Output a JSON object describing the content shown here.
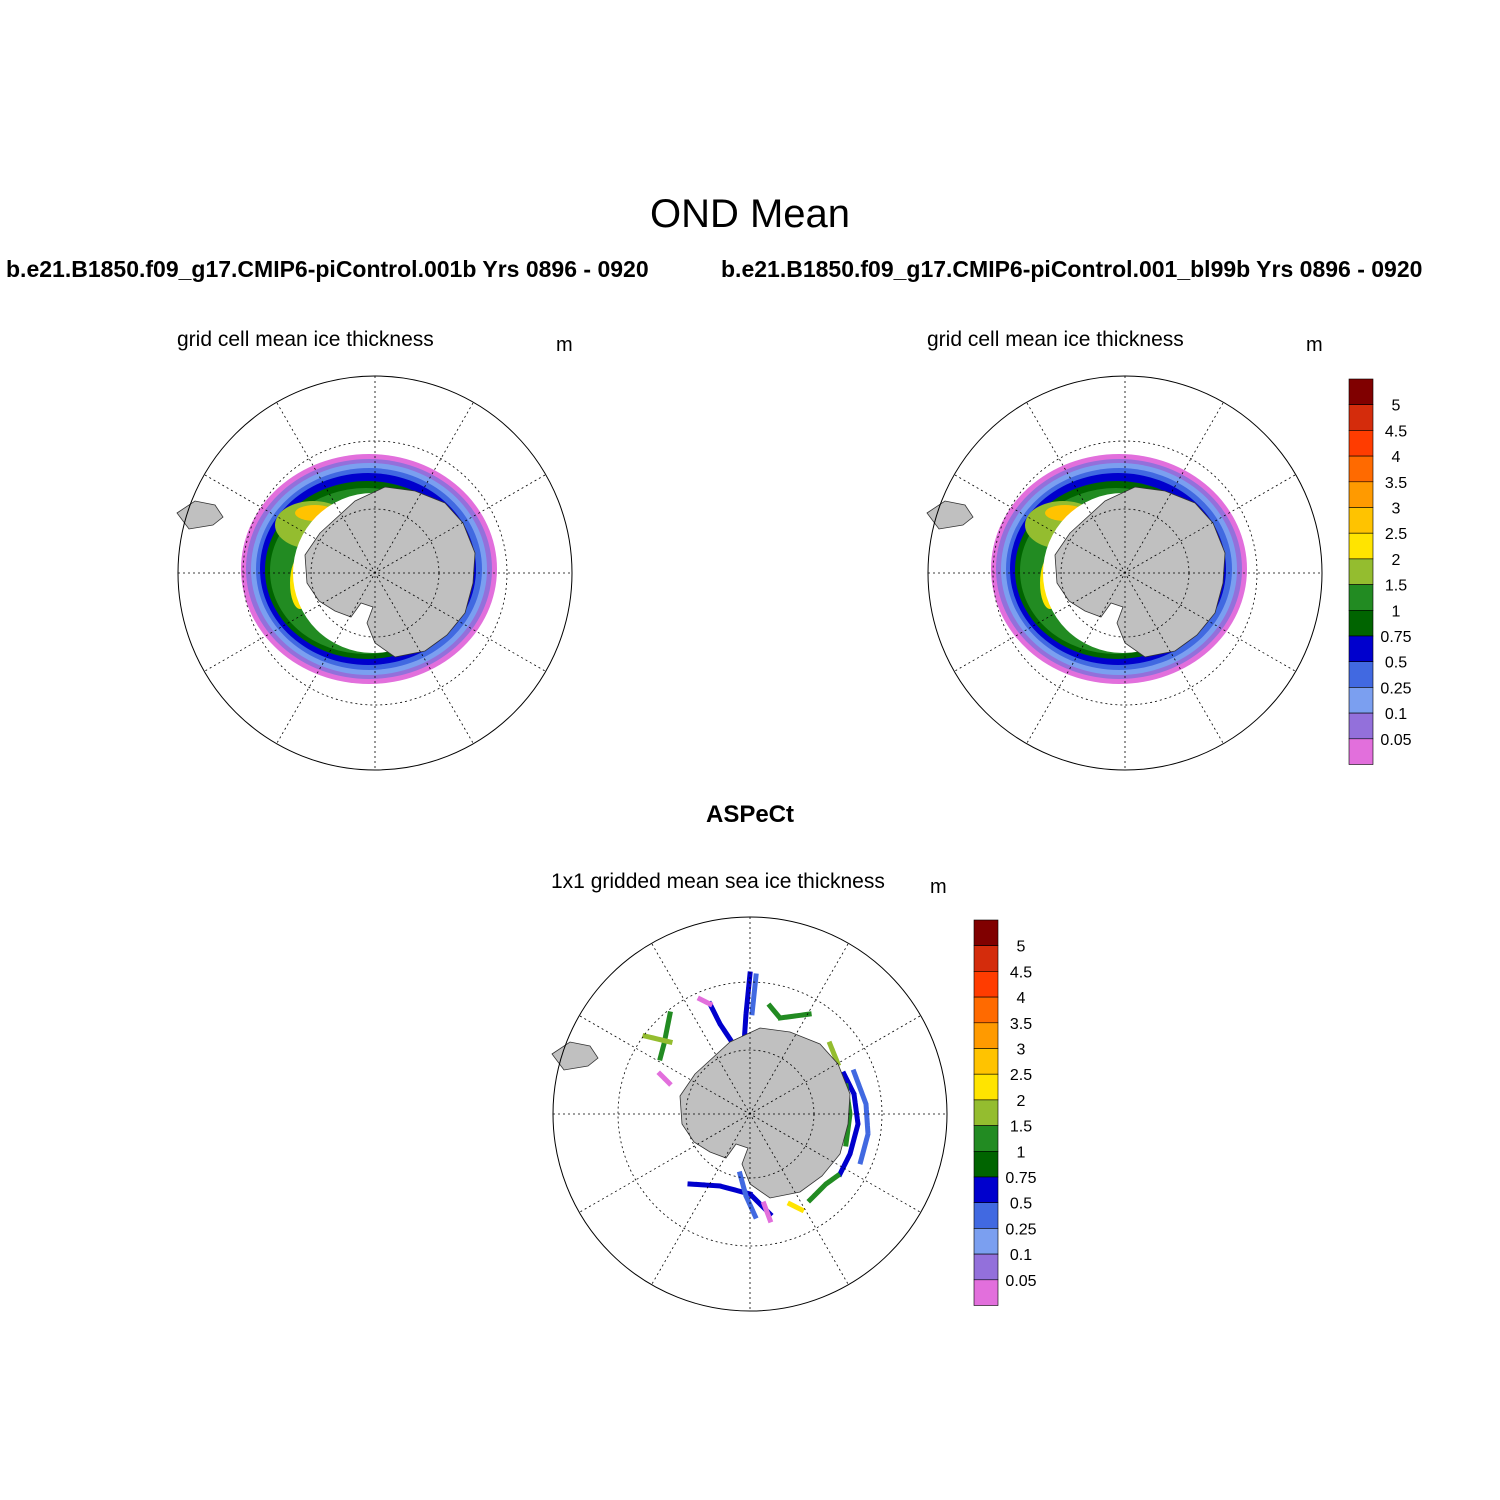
{
  "figure": {
    "title": "OND Mean",
    "panels": [
      {
        "case_title": "b.e21.B1850.f09_g17.CMIP6-piControl.001b  Yrs 0896 - 0920",
        "variable_label": "grid cell mean ice thickness",
        "units": "m"
      },
      {
        "case_title": "b.e21.B1850.f09_g17.CMIP6-piControl.001_bl99b  Yrs 0896 - 0920",
        "variable_label": "grid cell mean ice thickness",
        "units": "m"
      }
    ],
    "observation": {
      "title": "ASPeCt",
      "variable_label": "1x1 gridded mean sea ice thickness",
      "units": "m"
    }
  },
  "colorbar": {
    "labels": [
      "5",
      "4.5",
      "4",
      "3.5",
      "3",
      "2.5",
      "2",
      "1.5",
      "1",
      "0.75",
      "0.5",
      "0.25",
      "0.1",
      "0.05"
    ],
    "colors": [
      "#800000",
      "#d42c0c",
      "#ff3c00",
      "#ff6a00",
      "#ff9a00",
      "#ffc300",
      "#ffe400",
      "#94bd2f",
      "#228b22",
      "#006400",
      "#0000cd",
      "#4169e1",
      "#7b9ff0",
      "#9370db",
      "#e26fdc"
    ]
  },
  "map_style": {
    "land_color": "#c0c0c0",
    "projection": "south polar stereographic"
  }
}
